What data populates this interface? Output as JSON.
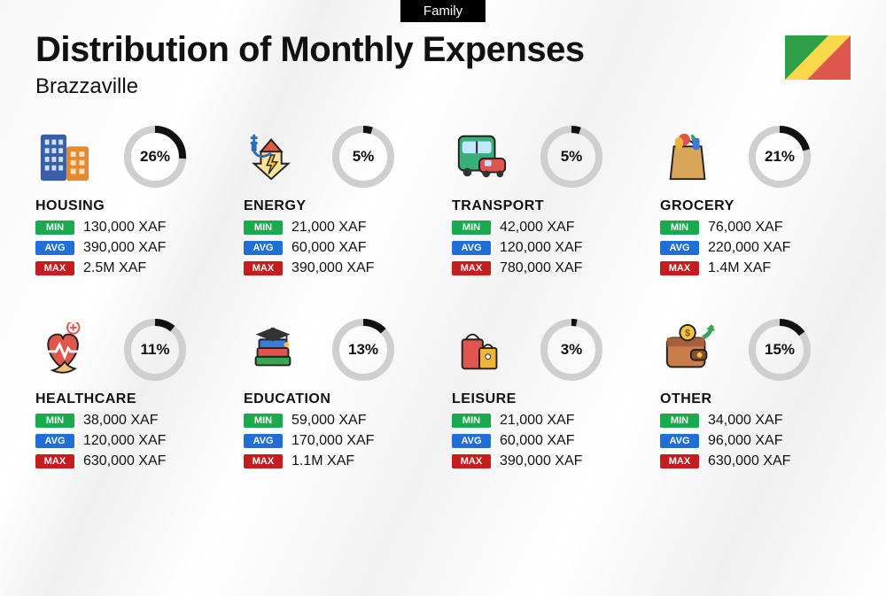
{
  "header": {
    "tag": "Family",
    "title": "Distribution of Monthly Expenses",
    "city": "Brazzaville"
  },
  "styling": {
    "ring": {
      "size": 70,
      "stroke": 8,
      "track_color": "#cfcfcf",
      "arc_color": "#111111"
    },
    "tag_colors": {
      "min": "#1aa94c",
      "avg": "#1f6fd6",
      "max": "#c51d1d"
    },
    "labels": {
      "min": "MIN",
      "avg": "AVG",
      "max": "MAX"
    },
    "title_fontsize": 40,
    "subtitle_fontsize": 24,
    "category_fontsize": 16,
    "value_fontsize": 16
  },
  "flag": {
    "country": "Republic of the Congo",
    "colors": {
      "green": "#2e9f46",
      "yellow": "#f9d84a",
      "red": "#e0574f"
    }
  },
  "categories": [
    {
      "key": "housing",
      "name": "HOUSING",
      "percent": 26,
      "min": "130,000 XAF",
      "avg": "390,000 XAF",
      "max": "2.5M XAF",
      "icon": "building-icon"
    },
    {
      "key": "energy",
      "name": "ENERGY",
      "percent": 5,
      "min": "21,000 XAF",
      "avg": "60,000 XAF",
      "max": "390,000 XAF",
      "icon": "energy-icon"
    },
    {
      "key": "transport",
      "name": "TRANSPORT",
      "percent": 5,
      "min": "42,000 XAF",
      "avg": "120,000 XAF",
      "max": "780,000 XAF",
      "icon": "bus-icon"
    },
    {
      "key": "grocery",
      "name": "GROCERY",
      "percent": 21,
      "min": "76,000 XAF",
      "avg": "220,000 XAF",
      "max": "1.4M XAF",
      "icon": "grocery-icon"
    },
    {
      "key": "healthcare",
      "name": "HEALTHCARE",
      "percent": 11,
      "min": "38,000 XAF",
      "avg": "120,000 XAF",
      "max": "630,000 XAF",
      "icon": "health-icon"
    },
    {
      "key": "education",
      "name": "EDUCATION",
      "percent": 13,
      "min": "59,000 XAF",
      "avg": "170,000 XAF",
      "max": "1.1M XAF",
      "icon": "education-icon"
    },
    {
      "key": "leisure",
      "name": "LEISURE",
      "percent": 3,
      "min": "21,000 XAF",
      "avg": "60,000 XAF",
      "max": "390,000 XAF",
      "icon": "leisure-icon"
    },
    {
      "key": "other",
      "name": "OTHER",
      "percent": 15,
      "min": "34,000 XAF",
      "avg": "96,000 XAF",
      "max": "630,000 XAF",
      "icon": "wallet-icon"
    }
  ]
}
